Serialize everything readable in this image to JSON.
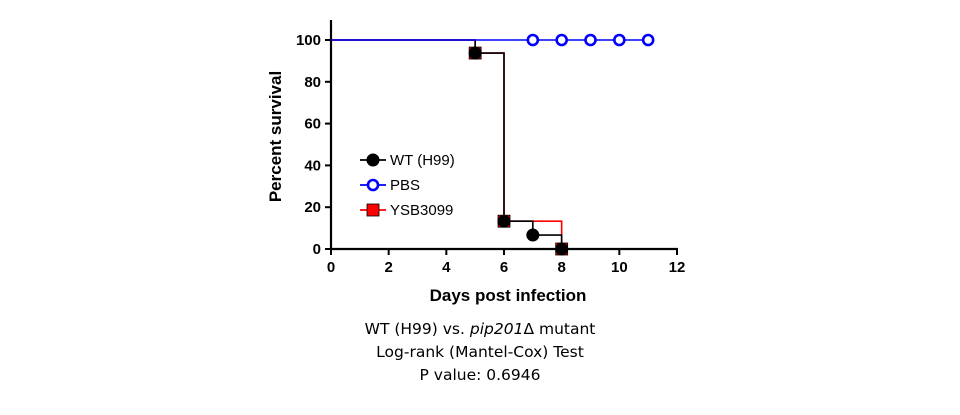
{
  "chart_data": {
    "type": "line",
    "step": true,
    "xlabel": "Days post infection",
    "ylabel": "Percent survival",
    "xlim": [
      0,
      12
    ],
    "ylim": [
      0,
      100
    ],
    "xticks": [
      0,
      2,
      4,
      6,
      8,
      10,
      12
    ],
    "yticks": [
      0,
      20,
      40,
      60,
      80,
      100
    ],
    "grid": false,
    "legend_position": "left-middle",
    "series": [
      {
        "name": "WT (H99)",
        "color": "#000000",
        "marker": "filled-circle",
        "points": [
          [
            0,
            100
          ],
          [
            5,
            93.75
          ],
          [
            6,
            13.3
          ],
          [
            7,
            6.67
          ],
          [
            8,
            0
          ]
        ],
        "markers": [
          [
            5,
            93.75
          ],
          [
            6,
            13.3
          ],
          [
            7,
            6.67
          ],
          [
            8,
            0
          ]
        ]
      },
      {
        "name": "PBS",
        "color": "#0000ff",
        "marker": "open-circle",
        "points": [
          [
            0,
            100
          ],
          [
            11,
            100
          ]
        ],
        "markers": [
          [
            7,
            100
          ],
          [
            8,
            100
          ],
          [
            9,
            100
          ],
          [
            10,
            100
          ],
          [
            11,
            100
          ]
        ]
      },
      {
        "name": "YSB3099",
        "color": "#ff0000",
        "marker": "filled-square",
        "points": [
          [
            0,
            100
          ],
          [
            5,
            93.75
          ],
          [
            6,
            13.3
          ],
          [
            8,
            0
          ]
        ],
        "markers": [
          [
            5,
            93.75
          ],
          [
            6,
            13.3
          ],
          [
            8,
            0
          ]
        ]
      }
    ]
  },
  "caption": {
    "line1_prefix": "WT (H99) vs. ",
    "line1_gene": "pip201",
    "line1_suffix": "Δ mutant",
    "line2": "Log-rank (Mantel-Cox) Test",
    "line3": "P value: 0.6946"
  }
}
